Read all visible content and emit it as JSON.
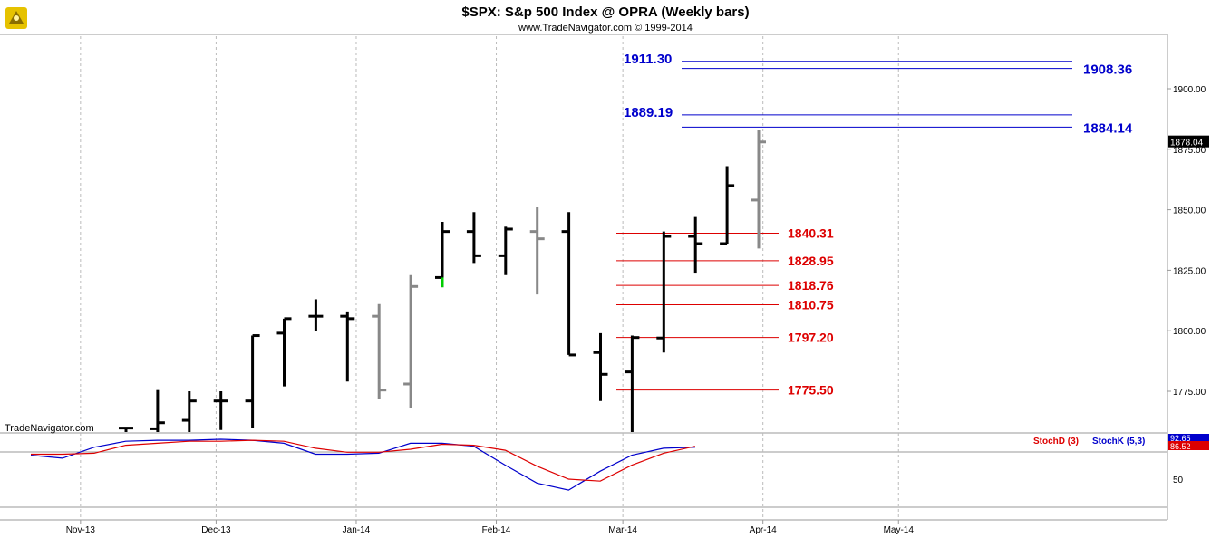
{
  "header": {
    "title": "$SPX:  S&p 500 Index @ OPRA  (Weekly bars)",
    "subtitle": "www.TradeNavigator.com © 1999-2014",
    "watermark": "TradeNavigator.com"
  },
  "colors": {
    "bar_up": "#000000",
    "bar_alt": "#888888",
    "bar_green": "#00cc00",
    "resistance": "#0000cc",
    "support": "#dd0000",
    "stoch_k": "#0000cc",
    "stoch_d": "#dd0000",
    "grid": "#bbbbbb"
  },
  "chart_data": [
    {
      "type": "ohlc",
      "title": "$SPX:  S&p 500 Index @ OPRA  (Weekly bars)",
      "x_labels": [
        "Nov-13",
        "Dec-13",
        "Jan-14",
        "Feb-14",
        "Mar-14",
        "Apr-14",
        "May-14"
      ],
      "y_ticks": [
        "1900.00",
        "1875.00",
        "1850.00",
        "1825.00",
        "1800.00",
        "1775.00"
      ],
      "ylim": [
        1758,
        1913
      ],
      "last_price": "1878.04",
      "bars": [
        {
          "week": "2013-10-21",
          "o": 1759.8,
          "h": 1760.0,
          "l": 1754.0,
          "c": 1759.8,
          "color": "black"
        },
        {
          "week": "2013-10-28",
          "o": 1759.5,
          "h": 1775.5,
          "l": 1754.0,
          "c": 1762.0,
          "color": "black"
        },
        {
          "week": "2013-11-04",
          "o": 1763.0,
          "h": 1775.0,
          "l": 1758.0,
          "c": 1771.0,
          "color": "black"
        },
        {
          "week": "2013-11-11",
          "o": 1771.0,
          "h": 1775.0,
          "l": 1759.0,
          "c": 1771.0,
          "color": "black"
        },
        {
          "week": "2013-11-18",
          "o": 1771.0,
          "h": 1798.0,
          "l": 1760.0,
          "c": 1798.0,
          "color": "black"
        },
        {
          "week": "2013-11-25",
          "o": 1799.0,
          "h": 1805.0,
          "l": 1777.0,
          "c": 1805.0,
          "color": "black"
        },
        {
          "week": "2013-12-02",
          "o": 1806.0,
          "h": 1813.0,
          "l": 1800.0,
          "c": 1806.0,
          "color": "black"
        },
        {
          "week": "2013-12-09",
          "o": 1806.0,
          "h": 1808.0,
          "l": 1779.0,
          "c": 1805.0,
          "color": "black"
        },
        {
          "week": "2013-12-16",
          "o": 1806.0,
          "h": 1811.0,
          "l": 1772.0,
          "c": 1775.5,
          "color": "gray"
        },
        {
          "week": "2013-12-23",
          "o": 1778.0,
          "h": 1823.0,
          "l": 1768.0,
          "c": 1818.3,
          "color": "gray"
        },
        {
          "week": "2013-12-30",
          "o": 1822.0,
          "h": 1845.0,
          "l": 1818.0,
          "c": 1841.0,
          "color": "black"
        },
        {
          "week": "2014-01-06",
          "o": 1841.0,
          "h": 1849.0,
          "l": 1828.0,
          "c": 1831.0,
          "color": "black"
        },
        {
          "week": "2014-01-13",
          "o": 1831.0,
          "h": 1843.0,
          "l": 1823.0,
          "c": 1842.0,
          "color": "black"
        },
        {
          "week": "2014-01-20",
          "o": 1841.0,
          "h": 1851.0,
          "l": 1815.0,
          "c": 1838.0,
          "color": "gray"
        },
        {
          "week": "2014-01-27",
          "o": 1841.0,
          "h": 1849.0,
          "l": 1790.0,
          "c": 1790.0,
          "color": "black"
        },
        {
          "week": "2014-02-03",
          "o": 1791.0,
          "h": 1799.0,
          "l": 1771.0,
          "c": 1782.0,
          "color": "black"
        },
        {
          "week": "2014-02-10",
          "o": 1783.0,
          "h": 1798.0,
          "l": 1758.0,
          "c": 1797.2,
          "color": "black"
        },
        {
          "week": "2014-02-17",
          "o": 1797.0,
          "h": 1841.0,
          "l": 1791.0,
          "c": 1839.0,
          "color": "black"
        },
        {
          "week": "2014-02-24",
          "o": 1839.0,
          "h": 1847.0,
          "l": 1824.0,
          "c": 1836.0,
          "color": "black"
        },
        {
          "week": "2014-03-03",
          "o": 1836.0,
          "h": 1868.0,
          "l": 1836.0,
          "c": 1860.0,
          "color": "black"
        },
        {
          "week": "2014-03-10",
          "o": 1854.0,
          "h": 1883.0,
          "l": 1834.0,
          "c": 1878.0,
          "color": "gray"
        }
      ],
      "resistance_levels": [
        {
          "label": "1911.30",
          "value": 1911.3
        },
        {
          "label": "1908.36",
          "value": 1908.36
        },
        {
          "label": "1889.19",
          "value": 1889.19
        },
        {
          "label": "1884.14",
          "value": 1884.14
        }
      ],
      "support_levels": [
        {
          "label": "1840.31",
          "value": 1840.31
        },
        {
          "label": "1828.95",
          "value": 1828.95
        },
        {
          "label": "1818.76",
          "value": 1818.76
        },
        {
          "label": "1810.75",
          "value": 1810.75
        },
        {
          "label": "1797.20",
          "value": 1797.2
        },
        {
          "label": "1775.50",
          "value": 1775.5
        }
      ]
    },
    {
      "type": "line",
      "title": "",
      "legend": [
        "StochD (3)",
        "StochK (5,3)"
      ],
      "y_ticks": [
        "50"
      ],
      "ylim": [
        20,
        100
      ],
      "last_values": {
        "k": "92.65",
        "d": "86.52"
      },
      "series": [
        {
          "name": "StochK (5,3)",
          "values": [
            74,
            71,
            82,
            88,
            89,
            89,
            90,
            89,
            86,
            75,
            75,
            76,
            86,
            86,
            83,
            64,
            46,
            39,
            58,
            74,
            81,
            82
          ]
        },
        {
          "name": "StochD (3)",
          "values": [
            75,
            75,
            76,
            84,
            86,
            88,
            88,
            89,
            88,
            81,
            77,
            77,
            80,
            85,
            84,
            79,
            63,
            50,
            48,
            64,
            76,
            83
          ]
        }
      ]
    }
  ]
}
